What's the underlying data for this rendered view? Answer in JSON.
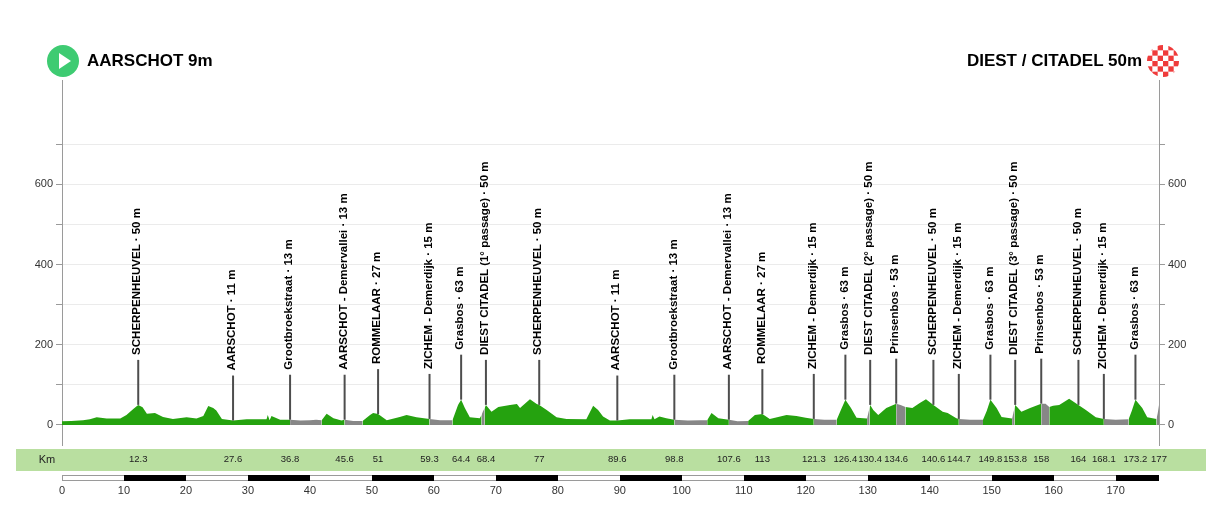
{
  "chart_data": {
    "type": "area",
    "x": [
      0,
      1.5,
      3.4,
      4.5,
      5.6,
      7.2,
      9.4,
      10.4,
      11.5,
      12.3,
      13,
      13.7,
      15,
      16.3,
      17.9,
      20.1,
      21.7,
      22.8,
      23.6,
      24.4,
      24.9,
      25.8,
      27.6,
      29.8,
      33,
      33.2,
      33.5,
      33.8,
      35.2,
      36.8,
      38.5,
      40,
      41,
      41.9,
      42.7,
      43.8,
      45.1,
      45.6,
      47,
      48.5,
      49.7,
      50.2,
      51,
      52.4,
      54.5,
      55.6,
      57.2,
      59.3,
      61,
      63,
      63.9,
      64.4,
      65,
      65.8,
      67.4,
      67.7,
      67.9,
      68.2,
      68.4,
      69.3,
      70.4,
      72.3,
      73.4,
      73.9,
      75.5,
      76.6,
      77,
      78.2,
      79.8,
      81.4,
      84.6,
      85.7,
      86.5,
      87.3,
      88.4,
      89.6,
      91.6,
      95.1,
      95.3,
      95.6,
      96.4,
      97.5,
      98.8,
      101,
      103,
      104.1,
      104.8,
      105.9,
      107.6,
      109,
      110.7,
      111.8,
      113,
      114.2,
      116.9,
      118.5,
      120,
      121.3,
      123,
      125,
      125.6,
      126.4,
      127.3,
      128.2,
      129.9,
      130.1,
      130.3,
      130.4,
      130.9,
      131.7,
      133,
      134.6,
      135.3,
      136.1,
      137.2,
      138.4,
      139.4,
      140.6,
      142.1,
      142.9,
      144.3,
      144.7,
      146.5,
      148.6,
      149.2,
      149.8,
      150.8,
      151.6,
      153.3,
      153.5,
      153.7,
      153.8,
      154.8,
      156.2,
      158,
      158.7,
      159.3,
      159.9,
      160.9,
      162.5,
      164,
      165.2,
      166.8,
      168.1,
      170,
      172.1,
      172.6,
      173.2,
      174.3,
      175.1,
      176.6,
      176.8,
      177
    ],
    "series": [
      {
        "color": "#25a20f",
        "values": [
          9,
          10,
          12,
          14,
          19,
          16,
          16,
          25,
          40,
          50,
          44,
          28,
          30,
          20,
          15,
          19,
          16,
          22,
          47,
          42,
          36,
          15,
          11,
          14,
          14,
          25,
          12,
          22,
          13,
          13,
          null,
          null,
          null,
          12,
          28,
          17,
          11,
          13,
          null,
          10,
          25,
          30,
          27,
          12,
          20,
          25,
          19,
          15,
          null,
          12,
          50,
          63,
          42,
          19,
          17,
          25,
          null,
          42,
          50,
          33,
          45,
          50,
          52,
          42,
          64,
          52,
          50,
          37,
          19,
          15,
          14,
          48,
          37,
          21,
          11,
          11,
          14,
          14,
          25,
          14,
          21,
          17,
          13,
          null,
          null,
          12,
          30,
          17,
          13,
          null,
          10,
          25,
          27,
          15,
          25,
          22,
          18,
          15,
          null,
          13,
          35,
          63,
          42,
          18,
          16,
          null,
          42,
          50,
          37,
          25,
          42,
          53,
          null,
          45,
          42,
          55,
          64,
          50,
          33,
          30,
          17,
          15,
          null,
          13,
          35,
          63,
          42,
          20,
          16,
          null,
          42,
          50,
          33,
          42,
          53,
          null,
          45,
          48,
          50,
          65,
          50,
          37,
          19,
          15,
          null,
          14,
          35,
          63,
          42,
          19,
          15,
          null,
          null
        ]
      },
      {
        "color": "#878787",
        "values": [
          null,
          null,
          null,
          null,
          null,
          null,
          null,
          null,
          null,
          null,
          null,
          null,
          null,
          null,
          null,
          null,
          null,
          null,
          null,
          null,
          null,
          null,
          null,
          null,
          null,
          null,
          null,
          null,
          null,
          13,
          11,
          12,
          13,
          12,
          null,
          null,
          null,
          13,
          10,
          10,
          null,
          null,
          null,
          null,
          null,
          null,
          null,
          15,
          12,
          12,
          null,
          null,
          null,
          null,
          null,
          25,
          33,
          42,
          null,
          null,
          null,
          null,
          null,
          null,
          null,
          null,
          null,
          null,
          null,
          null,
          null,
          null,
          null,
          null,
          null,
          null,
          null,
          null,
          null,
          null,
          null,
          null,
          13,
          11,
          12,
          12,
          null,
          null,
          13,
          9,
          10,
          null,
          null,
          null,
          null,
          null,
          null,
          15,
          13,
          13,
          null,
          null,
          null,
          null,
          16,
          30,
          42,
          null,
          null,
          null,
          null,
          53,
          50,
          45,
          null,
          null,
          null,
          null,
          null,
          null,
          null,
          15,
          13,
          13,
          null,
          null,
          null,
          null,
          16,
          30,
          42,
          null,
          null,
          null,
          53,
          53,
          45,
          null,
          null,
          null,
          null,
          null,
          null,
          15,
          13,
          14,
          null,
          null,
          null,
          null,
          15,
          30,
          50
        ]
      }
    ],
    "xlim": [
      0,
      177
    ],
    "xticks": [
      0,
      10,
      20,
      30,
      40,
      50,
      60,
      70,
      80,
      90,
      100,
      110,
      120,
      130,
      140,
      150,
      160,
      170
    ],
    "x2lim": [
      0,
      177
    ],
    "x2ticks": [
      12.3,
      27.6,
      36.8,
      45.6,
      51,
      59.3,
      64.4,
      68.4,
      77,
      89.6,
      98.8,
      107.6,
      113,
      121.3,
      126.4,
      130.4,
      134.6,
      140.6,
      144.7,
      149.8,
      153.8,
      158,
      164,
      168.1,
      173.2,
      177
    ],
    "x2label": "Km",
    "ylim": [
      -50,
      860
    ],
    "yticks": [
      0,
      {
        "value": 100,
        "label": null
      },
      200,
      {
        "value": 300,
        "label": null
      },
      400,
      {
        "value": 500,
        "label": null
      },
      600,
      {
        "value": 700,
        "label": null
      }
    ],
    "y2lim": [
      -50,
      860
    ],
    "y2ticks": [
      0,
      {
        "value": 100,
        "label": null
      },
      200,
      {
        "value": 300,
        "label": null
      },
      400,
      {
        "value": 500,
        "label": null
      },
      600,
      {
        "value": 700,
        "label": null
      }
    ],
    "grid": "y",
    "annotations": [
      "AARSCHOT 9m",
      "DIEST / CITADEL 50m",
      {
        "text": "SCHERPENHEUVEL · 50 m",
        "x": 12.3,
        "y": 50
      },
      {
        "text": "AARSCHOT · 11 m",
        "x": 27.6,
        "y": 11
      },
      {
        "text": "Grootbroekstraat · 13 m",
        "x": 36.8,
        "y": 13
      },
      {
        "text": "AARSCHOT - Demervallei · 13 m",
        "x": 45.6,
        "y": 13
      },
      {
        "text": "ROMMELAAR · 27 m",
        "x": 51,
        "y": 27
      },
      {
        "text": "ZICHEM - Demerdijk · 15 m",
        "x": 59.3,
        "y": 15
      },
      {
        "text": "Grasbos · 63 m",
        "x": 64.4,
        "y": 63
      },
      {
        "text": "DIEST CITADEL (1° passage) · 50 m",
        "x": 68.4,
        "y": 50
      },
      {
        "text": "SCHERPENHEUVEL · 50 m",
        "x": 77,
        "y": 50
      },
      {
        "text": "AARSCHOT · 11 m",
        "x": 89.6,
        "y": 11
      },
      {
        "text": "Grootbroekstraat · 13 m",
        "x": 98.8,
        "y": 13
      },
      {
        "text": "AARSCHOT - Demervallei · 13 m",
        "x": 107.6,
        "y": 13
      },
      {
        "text": "ROMMELAAR · 27 m",
        "x": 113,
        "y": 27
      },
      {
        "text": "ZICHEM - Demerdijk · 15 m",
        "x": 121.3,
        "y": 15
      },
      {
        "text": "Grasbos · 63 m",
        "x": 126.4,
        "y": 63
      },
      {
        "text": "DIEST CITADEL (2° passage) · 50 m",
        "x": 130.4,
        "y": 50
      },
      {
        "text": "Prinsenbos · 53 m",
        "x": 134.6,
        "y": 53
      },
      {
        "text": "SCHERPENHEUVEL · 50 m",
        "x": 140.6,
        "y": 50
      },
      {
        "text": "ZICHEM - Demerdijk · 15 m",
        "x": 144.7,
        "y": 15
      },
      {
        "text": "Grasbos · 63 m",
        "x": 149.8,
        "y": 63
      },
      {
        "text": "DIEST CITADEL (3° passage) · 50 m",
        "x": 153.8,
        "y": 50
      },
      {
        "text": "Prinsenbos · 53 m",
        "x": 158,
        "y": 53
      },
      {
        "text": "SCHERPENHEUVEL · 50 m",
        "x": 164,
        "y": 50
      },
      {
        "text": "ZICHEM - Demerdijk · 15 m",
        "x": 168.1,
        "y": 15
      },
      {
        "text": "Grasbos · 63 m",
        "x": 173.2,
        "y": 63
      }
    ]
  }
}
